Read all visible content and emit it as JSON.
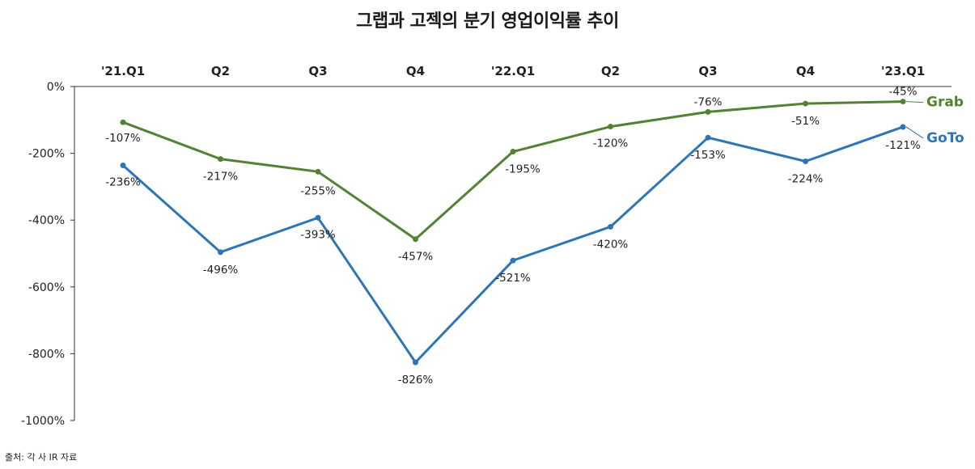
{
  "chart_data": {
    "type": "line",
    "title": "그랩과 고젝의 분기 영업이익률 추이",
    "categories": [
      "'21.Q1",
      "Q2",
      "Q3",
      "Q4",
      "'22.Q1",
      "Q2",
      "Q3",
      "Q4",
      "'23.Q1"
    ],
    "series": [
      {
        "name": "Grab",
        "color": "#548235",
        "values": [
          -107,
          -217,
          -255,
          -457,
          -195,
          -120,
          -76,
          -51,
          -45
        ],
        "labels": [
          "-107%",
          "-217%",
          "-255%",
          "-457%",
          "-195%",
          "-120%",
          "-76%",
          "-51%",
          "-45%"
        ]
      },
      {
        "name": "GoTo",
        "color": "#2E75B6",
        "values": [
          -236,
          -496,
          -393,
          -826,
          -521,
          -420,
          -153,
          -224,
          -121
        ],
        "labels": [
          "-236%",
          "-496%",
          "-393%",
          "-826%",
          "-521%",
          "-420%",
          "-153%",
          "-224%",
          "-121%"
        ]
      }
    ],
    "y_ticks": [
      0,
      -200,
      -400,
      -600,
      -800,
      -1000
    ],
    "y_tick_labels": [
      "0%",
      "-200%",
      "-400%",
      "-600%",
      "-800%",
      "-1000%"
    ],
    "ylim": [
      -1000,
      0
    ],
    "x_axis_position": "top",
    "grid": false,
    "legend": "end-of-line labels"
  },
  "source": "출처: 각 사 IR 자료"
}
